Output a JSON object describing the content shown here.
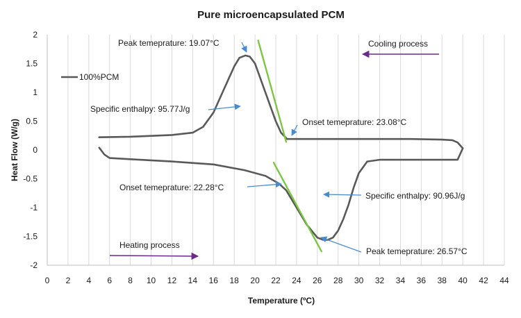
{
  "chart_data": {
    "type": "line",
    "title": "Pure microencapsulated PCM",
    "xlabel": "Temperature (ºC)",
    "ylabel": "Heat Flow (W/g)",
    "xlim": [
      0,
      44
    ],
    "ylim": [
      -2,
      2
    ],
    "x_ticks": [
      0,
      2,
      4,
      6,
      8,
      10,
      12,
      14,
      16,
      18,
      20,
      22,
      24,
      26,
      28,
      30,
      32,
      34,
      36,
      38,
      40,
      42,
      44
    ],
    "y_ticks": [
      2,
      1.5,
      1,
      0.5,
      0,
      -0.5,
      -1,
      -1.5,
      -2
    ],
    "grid": "vertical",
    "legend": "left",
    "series": [
      {
        "name": "100%PCM",
        "color": "#595959",
        "segments": [
          {
            "label": "cooling",
            "x": [
              5.0,
              8.0,
              12.0,
              14.0,
              15.0,
              16.0,
              17.0,
              18.0,
              18.5,
              19.07,
              19.5,
              20.0,
              20.5,
              21.0,
              21.5,
              22.0,
              22.5,
              23.08,
              25.0,
              30.0,
              35.0,
              38.0,
              39.0,
              39.5,
              40.0
            ],
            "y": [
              0.22,
              0.23,
              0.26,
              0.3,
              0.4,
              0.65,
              1.05,
              1.45,
              1.6,
              1.64,
              1.62,
              1.5,
              1.25,
              1.0,
              0.75,
              0.5,
              0.3,
              0.19,
              0.19,
              0.19,
              0.19,
              0.18,
              0.17,
              0.13,
              0.03
            ]
          },
          {
            "label": "heating",
            "x": [
              40.0,
              39.5,
              38.0,
              35.0,
              32.0,
              30.8,
              30.0,
              29.5,
              29.0,
              28.5,
              28.0,
              27.5,
              27.0,
              26.57,
              26.0,
              25.0,
              24.0,
              23.0,
              22.28,
              21.0,
              19.0,
              16.0,
              12.0,
              8.0,
              6.0,
              5.5,
              5.0
            ],
            "y": [
              0.03,
              -0.17,
              -0.17,
              -0.17,
              -0.17,
              -0.2,
              -0.4,
              -0.65,
              -0.95,
              -1.2,
              -1.4,
              -1.52,
              -1.56,
              -1.56,
              -1.52,
              -1.3,
              -1.0,
              -0.7,
              -0.58,
              -0.45,
              -0.35,
              -0.25,
              -0.2,
              -0.16,
              -0.14,
              -0.08,
              0.04
            ]
          }
        ]
      },
      {
        "name": "",
        "color": "#7CC644",
        "segments": [
          {
            "label": "cooling-onset",
            "x": [
              20.3,
              23.0
            ],
            "y": [
              1.9,
              0.14
            ]
          },
          {
            "label": "heating-onset",
            "x": [
              21.8,
              26.4
            ],
            "y": [
              -0.22,
              -1.76
            ]
          }
        ]
      }
    ],
    "annotations": [
      {
        "text": "Peak temeprature: 19.07°C",
        "x": 19.07,
        "y": 1.64
      },
      {
        "text": "Specific enthalpy: 95.77J/g",
        "x": 17.5,
        "y": 0.8
      },
      {
        "text": "Onset temeprature: 23.08°C",
        "x": 23.08,
        "y": 0.19
      },
      {
        "text": "Cooling process",
        "x": 30.5,
        "y": 1.66
      },
      {
        "text": "Onset temeprature: 22.28°C",
        "x": 22.28,
        "y": -0.58
      },
      {
        "text": "Specific enthalpy: 90.96J/g",
        "x": 27.0,
        "y": -0.75
      },
      {
        "text": "Peak temeprature: 26.57°C",
        "x": 26.57,
        "y": -1.56
      },
      {
        "text": "Heating process",
        "x": 6.5,
        "y": -1.8
      }
    ],
    "arrow_color": "#4A8BD0",
    "process_arrow_color": "#6A2A8C"
  }
}
